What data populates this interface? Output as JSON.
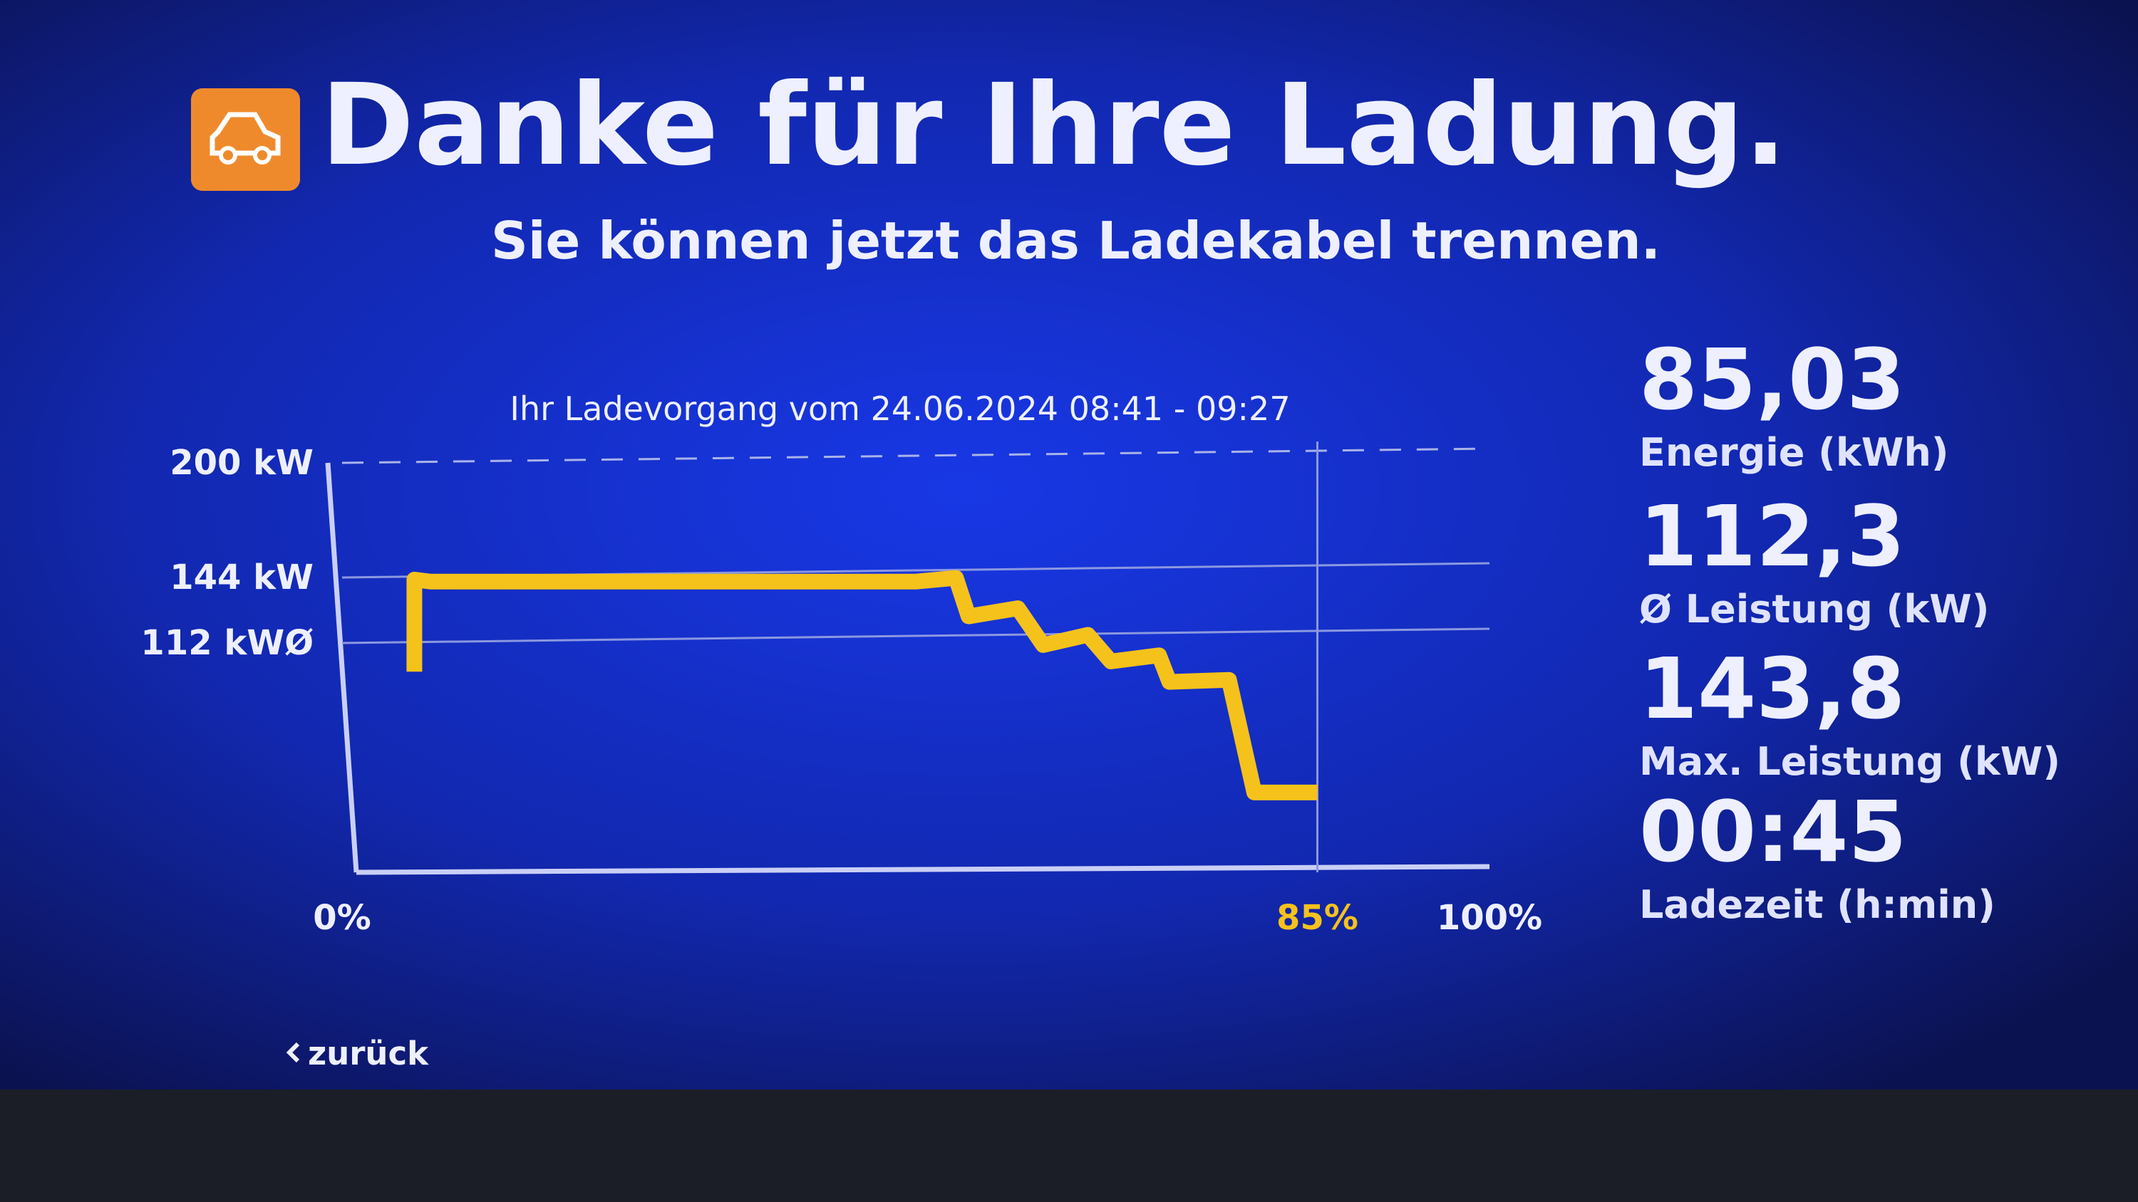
{
  "header": {
    "title": "Danke für Ihre Ladung.",
    "subtitle": "Sie können jetzt das Ladekabel trennen."
  },
  "chart_data": {
    "type": "line",
    "title": "Ihr Ladevorgang vom 24.06.2024 08:41 - 09:27",
    "x": [
      6.3,
      6.3,
      7.7,
      50,
      53.5,
      54.6,
      58.9,
      61.1,
      65,
      67,
      71.2,
      72.1,
      77.3,
      79.5,
      85
    ],
    "values": [
      98,
      143,
      142,
      142,
      143.8,
      125,
      129,
      111,
      116,
      103,
      106,
      93,
      94,
      39,
      39
    ],
    "color": "#f5c21b",
    "xlim": [
      0,
      100
    ],
    "xticks": [
      {
        "value": 0,
        "label": "0%"
      },
      {
        "value": 85,
        "label": "85%"
      },
      {
        "value": 100,
        "label": "100%"
      }
    ],
    "ylim": [
      0,
      200
    ],
    "yticks": [
      {
        "value": 112,
        "label": "112 kWØ"
      },
      {
        "value": 144,
        "label": "144 kW"
      },
      {
        "value": 200,
        "label": "200 kW"
      }
    ],
    "grid": true
  },
  "stats": [
    {
      "value": "85,03",
      "label": "Energie (kWh)"
    },
    {
      "value": "112,3",
      "label": "Ø Leistung (kW)"
    },
    {
      "value": "143,8",
      "label": "Max. Leistung (kW)"
    },
    {
      "value": "00:45",
      "label": "Ladezeit (h:min)"
    }
  ],
  "back": "zurück"
}
